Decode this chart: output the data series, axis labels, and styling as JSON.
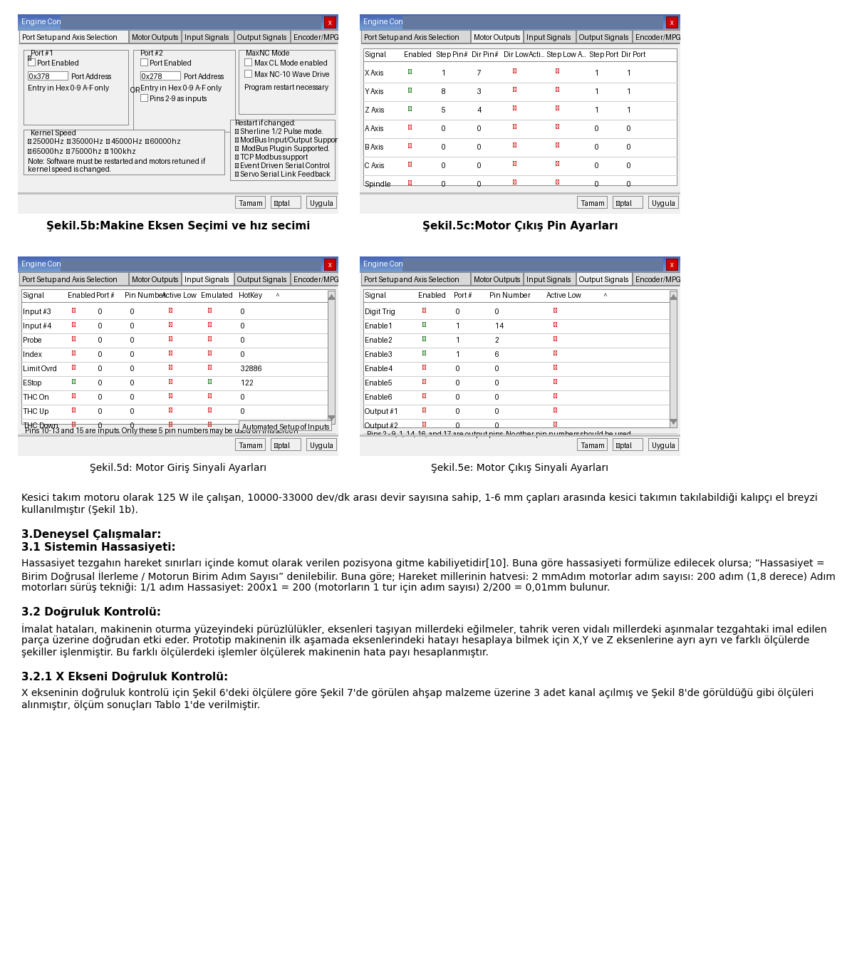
{
  "background_color": "#ffffff",
  "page_width": 9.6,
  "page_height": 13.5,
  "caption_5b": "Şekil.5b:Makine Eksen Seçimi ve hız secimi",
  "caption_5c": "Şekil.5c:Motor Çıkış Pin Ayarları",
  "caption_5d": "Şekil.5d: Motor Giriş Sinyali Ayarları",
  "caption_5e": "Şekil.5e: Motor Çıkış Sinyali Ayarları",
  "para1": "Kesici takım motoru olarak 125 W ile çalışan, 10000-33000 dev/dk arası devir sayısına sahip, 1-6 mm çapları arasında kesici takımın takılabildiği kalıpçı el breyzi kullanılmıştır ",
  "para1_bold": "(Şekil 1b).",
  "section_heading1": "3.Deneysel Çalışmalar:",
  "section_heading2": "3.1 Sistemin Hassasiyeti:",
  "para2": "Hassasiyet tezgahın hareket sınırları içinde komut olarak verilen pozisyona gitme kabiliyetidir[10]. Buna göre hassasiyeti formülize edilecek olursa; “Hassasiyet = Birim Doğrusal İlerleme / Motorun Birim Adım Sayısı” denilebilir. Buna göre; Hareket millerinin hatvesi: 2 mmAdım motorlar adım sayısı: 200 adım (1,8 derece) Adım motorları sürüş tekniği: 1/1 adım Hassasiyet: 200x1 = 200 (motorların 1 tur için adım sayısı) 2/200 = 0,01mm bulunur.",
  "section_heading3": "3.2 Doğruluk Kontrolü:",
  "para3": "İmalat hataları, makinenin oturma yüzeyindeki pürüzlülükler, eksenleri taşıyan millerdeki eğilmeler, tahrik veren vidalı millerdeki aşınmalar tezgahtaki imal edilen parça üzerine doğrudan etki eder. Prototip makinenin ilk aşamada eksenlerindeki hatayı hesaplaya bilmek için X,Y ve Z eksenlerine ayrı ayrı ve farklı ölçülerde şekiller işlenmiştir. Bu farklı ölçülerdeki işlemler ölçülerek makinenin hata payı hesaplanmıştır.",
  "section_heading4": "3.2.1 X Ekseni Doğruluk Kontrolü:",
  "para4": "X ekseninin doğruluk kontrolü için Şekil 6'deki ölçülere göre Şekil 7'de görülen ahşap malzeme üzerine 3 adet kanal açılmış ve Şekil 8'de görüldüğü gibi ölçüleri alınmıştır, ölçüm sonuçları Tablo 1'de verilmiştir."
}
